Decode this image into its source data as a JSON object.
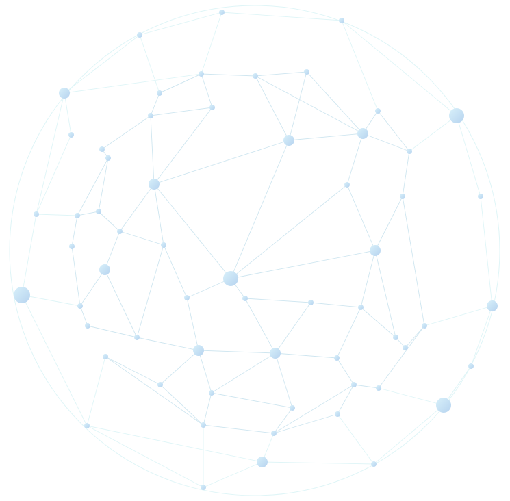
{
  "diagram": {
    "kind": "network-sphere",
    "colors": {
      "background": "#ffffff",
      "inner_edge": "#cfe6f0",
      "outer_edge": "#dff5f7",
      "node_light": "#d8f0fa",
      "node_dark": "#b6d3ef"
    }
  }
}
